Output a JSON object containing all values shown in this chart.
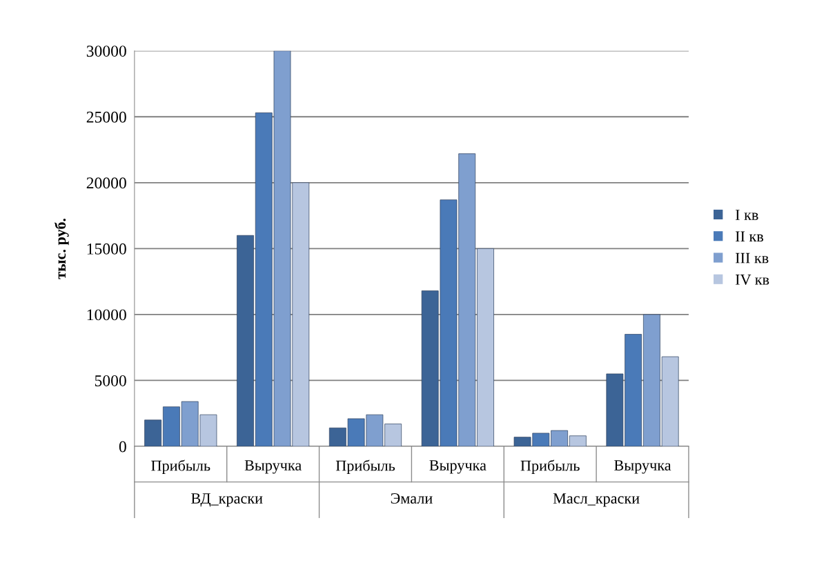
{
  "chart_data": {
    "type": "bar",
    "ylabel": "тыс. руб.",
    "categories": [
      "Прибыль",
      "Выручка",
      "Прибыль",
      "Выручка",
      "Прибыль",
      "Выручка"
    ],
    "annotations": [
      "ВД_краски",
      "Эмали",
      "Масл_краски"
    ],
    "series": [
      {
        "name": "I кв",
        "color": "#3c6496",
        "values": [
          2000,
          16000,
          1400,
          11800,
          700,
          5500
        ]
      },
      {
        "name": "II кв",
        "color": "#4a7ab8",
        "values": [
          3000,
          25300,
          2100,
          18700,
          1000,
          8500
        ]
      },
      {
        "name": "III кв",
        "color": "#7f9fcf",
        "values": [
          3400,
          30000,
          2400,
          22200,
          1200,
          10000
        ]
      },
      {
        "name": "IV кв",
        "color": "#b7c6e0",
        "values": [
          2400,
          20000,
          1700,
          15000,
          800,
          6800
        ]
      }
    ],
    "ylim": [
      0,
      30000
    ],
    "yticks": [
      0,
      5000,
      10000,
      15000,
      20000,
      25000,
      30000
    ],
    "grid": "y",
    "legend": "right"
  }
}
